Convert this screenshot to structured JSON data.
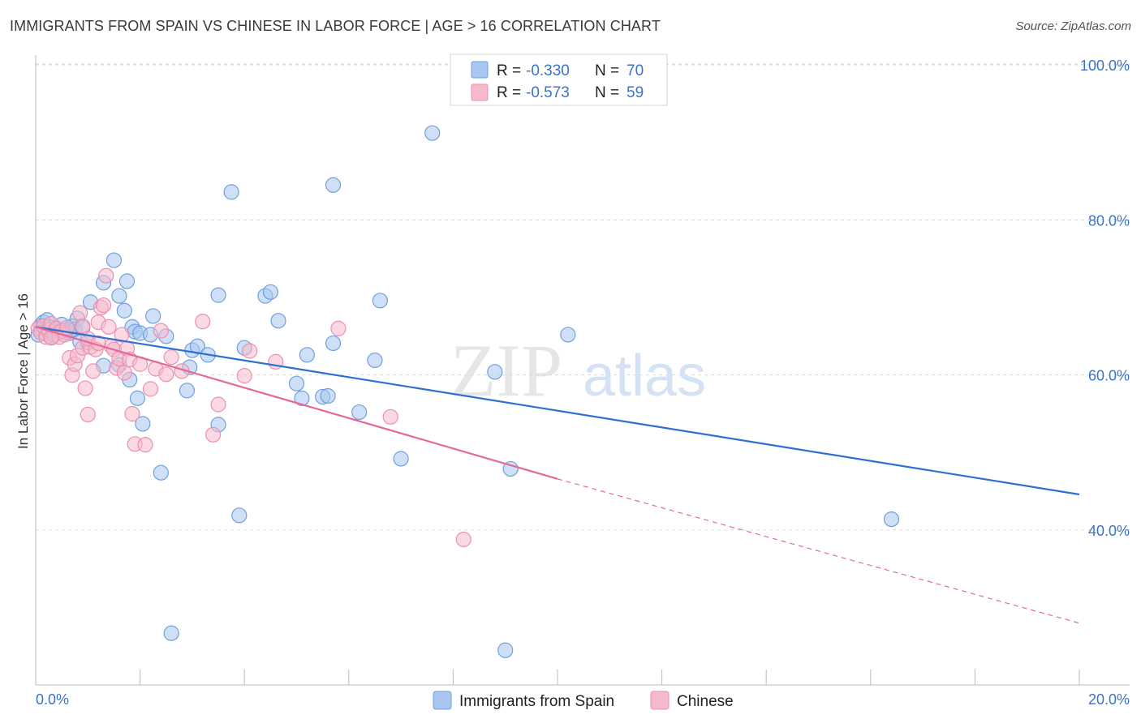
{
  "header": {
    "title": "IMMIGRANTS FROM SPAIN VS CHINESE IN LABOR FORCE | AGE > 16 CORRELATION CHART",
    "source": "Source: ZipAtlas.com"
  },
  "watermark": {
    "zip": "ZIP",
    "atlas": "atlas"
  },
  "legend": {
    "rows": [
      {
        "r_label": "R =",
        "r_value": "-0.330",
        "n_label": "N =",
        "n_value": "70"
      },
      {
        "r_label": "R =",
        "r_value": "-0.573",
        "n_label": "N =",
        "n_value": "59"
      }
    ]
  },
  "colors": {
    "blue_fill": "#a8c6ef",
    "blue_stroke": "#6f9fe0",
    "blue_line": "#2f6fd0",
    "pink_fill": "#f6b9cc",
    "pink_stroke": "#ec8fae",
    "pink_line": "#e4689a",
    "grid": "#dcdcdc",
    "tick_text": "#3b73c8"
  },
  "chart_data": {
    "type": "scatter",
    "title": "IMMIGRANTS FROM SPAIN VS CHINESE IN LABOR FORCE | AGE > 16 CORRELATION CHART",
    "xlabel": "",
    "ylabel": "In Labor Force | Age > 16",
    "xlim": [
      0,
      20
    ],
    "ylim": [
      21,
      104
    ],
    "x_tick_labels": [
      "0.0%",
      "20.0%"
    ],
    "y_ticks": [
      40,
      60,
      80,
      100
    ],
    "y_tick_labels": [
      "40.0%",
      "60.0%",
      "80.0%",
      "100.0%"
    ],
    "legend_position": "top-center",
    "series": [
      {
        "name": "Immigrants from Spain",
        "color": "#a8c6ef",
        "R": -0.33,
        "N": 70,
        "trendline": {
          "x": [
            0,
            20
          ],
          "y": [
            66.2,
            44.6
          ]
        },
        "points": [
          [
            0.05,
            65.2
          ],
          [
            0.1,
            66.4
          ],
          [
            0.12,
            65.9
          ],
          [
            0.15,
            66.8
          ],
          [
            0.2,
            65.3
          ],
          [
            0.22,
            67.1
          ],
          [
            0.25,
            66.2
          ],
          [
            0.3,
            64.9
          ],
          [
            0.35,
            65.6
          ],
          [
            0.4,
            66.0
          ],
          [
            0.45,
            65.7
          ],
          [
            0.5,
            66.5
          ],
          [
            0.55,
            65.5
          ],
          [
            0.6,
            65.8
          ],
          [
            0.65,
            65.4
          ],
          [
            0.7,
            66.3
          ],
          [
            0.75,
            65.9
          ],
          [
            0.8,
            67.3
          ],
          [
            0.85,
            64.3
          ],
          [
            0.9,
            66.1
          ],
          [
            1.0,
            64.2
          ],
          [
            1.05,
            69.4
          ],
          [
            1.3,
            71.9
          ],
          [
            1.5,
            74.8
          ],
          [
            1.6,
            70.2
          ],
          [
            1.75,
            72.1
          ],
          [
            1.7,
            68.3
          ],
          [
            1.85,
            66.2
          ],
          [
            1.9,
            65.6
          ],
          [
            2.0,
            65.4
          ],
          [
            2.2,
            65.2
          ],
          [
            2.25,
            67.6
          ],
          [
            2.5,
            65.0
          ],
          [
            2.4,
            47.4
          ],
          [
            1.8,
            59.4
          ],
          [
            1.6,
            61.3
          ],
          [
            1.95,
            57.0
          ],
          [
            2.05,
            53.7
          ],
          [
            2.9,
            58.0
          ],
          [
            2.95,
            61.0
          ],
          [
            3.0,
            63.2
          ],
          [
            3.1,
            63.7
          ],
          [
            3.5,
            53.6
          ],
          [
            3.5,
            70.3
          ],
          [
            3.75,
            83.6
          ],
          [
            3.9,
            41.9
          ],
          [
            4.0,
            63.5
          ],
          [
            4.4,
            70.2
          ],
          [
            4.5,
            70.7
          ],
          [
            4.65,
            67.0
          ],
          [
            5.0,
            58.9
          ],
          [
            5.1,
            57.0
          ],
          [
            5.2,
            62.6
          ],
          [
            5.5,
            57.2
          ],
          [
            5.6,
            57.3
          ],
          [
            5.7,
            84.5
          ],
          [
            5.7,
            64.1
          ],
          [
            6.2,
            55.2
          ],
          [
            6.5,
            61.9
          ],
          [
            6.6,
            69.6
          ],
          [
            7.0,
            49.2
          ],
          [
            7.6,
            91.2
          ],
          [
            8.8,
            60.4
          ],
          [
            9.1,
            47.9
          ],
          [
            10.2,
            65.2
          ],
          [
            16.4,
            41.4
          ],
          [
            2.6,
            26.7
          ],
          [
            9.0,
            24.5
          ],
          [
            1.3,
            61.2
          ],
          [
            3.3,
            62.6
          ]
        ]
      },
      {
        "name": "Chinese",
        "color": "#f6b9cc",
        "R": -0.573,
        "N": 59,
        "trendline": {
          "x": [
            0,
            10
          ],
          "y": [
            66.2,
            46.6
          ]
        },
        "trendline_dashed": {
          "x": [
            10,
            20
          ],
          "y": [
            46.6,
            28.0
          ]
        },
        "points": [
          [
            0.05,
            66.0
          ],
          [
            0.1,
            65.5
          ],
          [
            0.15,
            66.3
          ],
          [
            0.2,
            64.9
          ],
          [
            0.25,
            65.8
          ],
          [
            0.3,
            66.6
          ],
          [
            0.35,
            65.2
          ],
          [
            0.4,
            66.0
          ],
          [
            0.45,
            64.9
          ],
          [
            0.5,
            65.7
          ],
          [
            0.55,
            65.2
          ],
          [
            0.6,
            66.1
          ],
          [
            0.65,
            62.2
          ],
          [
            0.7,
            60.0
          ],
          [
            0.75,
            61.4
          ],
          [
            0.8,
            62.5
          ],
          [
            0.85,
            68.0
          ],
          [
            0.9,
            63.5
          ],
          [
            0.95,
            58.3
          ],
          [
            1.0,
            54.9
          ],
          [
            1.05,
            63.6
          ],
          [
            1.1,
            60.5
          ],
          [
            1.15,
            63.3
          ],
          [
            1.2,
            66.8
          ],
          [
            1.25,
            68.7
          ],
          [
            1.3,
            69.0
          ],
          [
            1.35,
            72.8
          ],
          [
            1.4,
            66.2
          ],
          [
            1.45,
            63.7
          ],
          [
            1.5,
            63.3
          ],
          [
            1.55,
            60.9
          ],
          [
            1.6,
            62.1
          ],
          [
            1.65,
            65.2
          ],
          [
            1.7,
            60.3
          ],
          [
            1.75,
            63.4
          ],
          [
            1.8,
            62.0
          ],
          [
            1.85,
            55.0
          ],
          [
            1.9,
            51.1
          ],
          [
            2.0,
            61.4
          ],
          [
            2.1,
            51.0
          ],
          [
            2.2,
            58.2
          ],
          [
            2.3,
            60.8
          ],
          [
            2.4,
            65.7
          ],
          [
            2.5,
            60.1
          ],
          [
            2.6,
            62.3
          ],
          [
            2.8,
            60.5
          ],
          [
            3.2,
            66.9
          ],
          [
            3.4,
            52.3
          ],
          [
            3.5,
            56.2
          ],
          [
            4.0,
            59.9
          ],
          [
            4.1,
            63.1
          ],
          [
            4.6,
            61.7
          ],
          [
            5.8,
            66.0
          ],
          [
            6.8,
            54.6
          ],
          [
            8.2,
            38.8
          ],
          [
            0.3,
            64.8
          ],
          [
            0.9,
            66.3
          ],
          [
            1.0,
            64.7
          ],
          [
            1.2,
            64.1
          ]
        ]
      }
    ]
  },
  "bottom_legend": {
    "items": [
      {
        "label": "Immigrants from Spain"
      },
      {
        "label": "Chinese"
      }
    ]
  }
}
